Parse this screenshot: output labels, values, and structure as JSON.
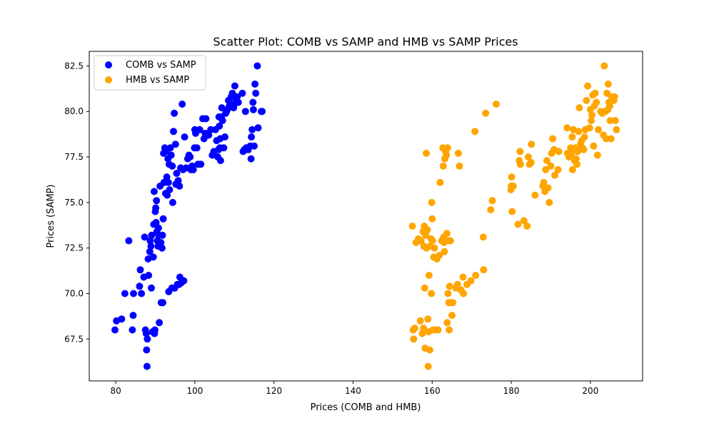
{
  "chart_data": {
    "type": "scatter",
    "title": "Scatter Plot: COMB vs SAMP and HMB vs SAMP Prices",
    "xlabel": "Prices (COMB and HMB)",
    "ylabel": "Prices (SAMP)",
    "xlim": [
      73.3,
      213.2
    ],
    "ylim": [
      65.2,
      83.3
    ],
    "xticks": [
      80,
      100,
      120,
      140,
      160,
      180,
      200
    ],
    "yticks": [
      67.5,
      70.0,
      72.5,
      75.0,
      77.5,
      80.0,
      82.5
    ],
    "xtick_labels": [
      "80",
      "100",
      "120",
      "140",
      "160",
      "180",
      "200"
    ],
    "ytick_labels": [
      "67.5",
      "70.0",
      "72.5",
      "75.0",
      "77.5",
      "80.0",
      "82.5"
    ],
    "grid": false,
    "legend_position": "top-left",
    "series": [
      {
        "name": "COMB vs SAMP",
        "color": "#0000ff",
        "points": [
          [
            79.8,
            68.0
          ],
          [
            80.2,
            68.5
          ],
          [
            81.5,
            68.6
          ],
          [
            82.3,
            70.0
          ],
          [
            83.3,
            72.9
          ],
          [
            84.2,
            68.0
          ],
          [
            84.4,
            68.8
          ],
          [
            84.5,
            70.0
          ],
          [
            86.0,
            70.4
          ],
          [
            86.2,
            71.3
          ],
          [
            86.5,
            70.0
          ],
          [
            87.1,
            70.9
          ],
          [
            87.3,
            73.1
          ],
          [
            87.5,
            68.0
          ],
          [
            87.7,
            67.8
          ],
          [
            87.8,
            66.9
          ],
          [
            87.9,
            66.0
          ],
          [
            88.0,
            67.5
          ],
          [
            88.2,
            71.9
          ],
          [
            88.3,
            71.0
          ],
          [
            88.6,
            72.3
          ],
          [
            88.7,
            72.9
          ],
          [
            88.9,
            72.6
          ],
          [
            89.0,
            70.3
          ],
          [
            89.1,
            73.2
          ],
          [
            89.3,
            67.9
          ],
          [
            89.5,
            72.0
          ],
          [
            89.6,
            73.8
          ],
          [
            89.7,
            75.6
          ],
          [
            89.8,
            67.8
          ],
          [
            89.9,
            68.0
          ],
          [
            90.0,
            74.5
          ],
          [
            90.1,
            74.7
          ],
          [
            90.2,
            73.9
          ],
          [
            90.3,
            75.1
          ],
          [
            90.4,
            73.4
          ],
          [
            90.5,
            72.9
          ],
          [
            90.7,
            72.6
          ],
          [
            90.8,
            73.6
          ],
          [
            90.9,
            73.2
          ],
          [
            91.0,
            68.4
          ],
          [
            91.2,
            75.9
          ],
          [
            91.4,
            72.8
          ],
          [
            91.5,
            69.5
          ],
          [
            91.7,
            72.5
          ],
          [
            91.8,
            73.2
          ],
          [
            91.9,
            69.5
          ],
          [
            92.0,
            74.1
          ],
          [
            92.1,
            77.7
          ],
          [
            92.2,
            76.1
          ],
          [
            92.4,
            78.0
          ],
          [
            92.6,
            75.5
          ],
          [
            92.7,
            75.5
          ],
          [
            92.8,
            77.8
          ],
          [
            92.9,
            76.4
          ],
          [
            93.0,
            75.4
          ],
          [
            93.2,
            77.4
          ],
          [
            93.3,
            76.1
          ],
          [
            93.4,
            70.1
          ],
          [
            93.5,
            77.1
          ],
          [
            93.6,
            75.7
          ],
          [
            93.8,
            78.0
          ],
          [
            94.0,
            77.6
          ],
          [
            94.2,
            70.3
          ],
          [
            94.3,
            77.0
          ],
          [
            94.4,
            75.0
          ],
          [
            94.6,
            78.9
          ],
          [
            94.8,
            79.9
          ],
          [
            94.9,
            70.3
          ],
          [
            95.1,
            78.2
          ],
          [
            95.2,
            76.0
          ],
          [
            95.4,
            76.6
          ],
          [
            95.6,
            70.5
          ],
          [
            95.8,
            76.2
          ],
          [
            96.0,
            70.5
          ],
          [
            96.1,
            75.9
          ],
          [
            96.2,
            70.9
          ],
          [
            96.4,
            76.9
          ],
          [
            96.6,
            70.6
          ],
          [
            96.8,
            80.4
          ],
          [
            97.0,
            76.8
          ],
          [
            97.2,
            70.7
          ],
          [
            97.4,
            78.6
          ],
          [
            97.8,
            76.9
          ],
          [
            98.2,
            77.4
          ],
          [
            98.5,
            77.6
          ],
          [
            98.8,
            77.5
          ],
          [
            99.0,
            76.8
          ],
          [
            99.3,
            77.0
          ],
          [
            99.6,
            76.8
          ],
          [
            99.9,
            78.0
          ],
          [
            100.0,
            79.0
          ],
          [
            100.2,
            78.8
          ],
          [
            100.5,
            78.0
          ],
          [
            100.8,
            77.1
          ],
          [
            101.2,
            79.0
          ],
          [
            101.5,
            77.1
          ],
          [
            102.0,
            79.6
          ],
          [
            102.3,
            78.5
          ],
          [
            102.6,
            78.8
          ],
          [
            102.8,
            79.6
          ],
          [
            103.5,
            78.7
          ],
          [
            104.0,
            79.0
          ],
          [
            104.4,
            77.6
          ],
          [
            104.8,
            77.8
          ],
          [
            105.2,
            79.0
          ],
          [
            105.5,
            78.4
          ],
          [
            105.8,
            77.5
          ],
          [
            106.0,
            77.9
          ],
          [
            106.1,
            79.7
          ],
          [
            106.2,
            79.2
          ],
          [
            106.3,
            78.0
          ],
          [
            106.4,
            78.5
          ],
          [
            106.5,
            77.3
          ],
          [
            106.7,
            79.7
          ],
          [
            106.8,
            80.2
          ],
          [
            107.0,
            79.5
          ],
          [
            107.3,
            78.0
          ],
          [
            107.6,
            78.6
          ],
          [
            107.8,
            79.9
          ],
          [
            108.0,
            80.0
          ],
          [
            108.2,
            80.1
          ],
          [
            108.5,
            80.6
          ],
          [
            108.7,
            80.3
          ],
          [
            109.0,
            80.4
          ],
          [
            109.2,
            80.8
          ],
          [
            109.5,
            81.0
          ],
          [
            109.8,
            80.2
          ],
          [
            110.0,
            80.4
          ],
          [
            110.1,
            81.4
          ],
          [
            110.4,
            80.6
          ],
          [
            110.7,
            80.8
          ],
          [
            111.0,
            80.5
          ],
          [
            112.0,
            81.0
          ],
          [
            112.2,
            77.8
          ],
          [
            112.5,
            77.9
          ],
          [
            112.8,
            80.0
          ],
          [
            113.0,
            78.0
          ],
          [
            113.5,
            77.9
          ],
          [
            114.0,
            78.1
          ],
          [
            114.2,
            77.4
          ],
          [
            114.3,
            78.6
          ],
          [
            114.5,
            79.0
          ],
          [
            114.7,
            80.5
          ],
          [
            114.8,
            80.1
          ],
          [
            115.0,
            78.1
          ],
          [
            115.2,
            81.5
          ],
          [
            115.4,
            81.0
          ],
          [
            115.8,
            82.5
          ],
          [
            116.0,
            79.1
          ],
          [
            116.8,
            80.0
          ],
          [
            117.0,
            80.0
          ]
        ]
      },
      {
        "name": "HMB vs SAMP",
        "color": "#ffa500",
        "points": [
          [
            155.0,
            73.7
          ],
          [
            155.2,
            68.0
          ],
          [
            155.3,
            67.5
          ],
          [
            155.6,
            68.1
          ],
          [
            155.9,
            72.8
          ],
          [
            156.5,
            73.0
          ],
          [
            157.0,
            68.5
          ],
          [
            157.2,
            72.9
          ],
          [
            157.5,
            67.8
          ],
          [
            157.7,
            73.4
          ],
          [
            157.8,
            68.1
          ],
          [
            157.9,
            72.6
          ],
          [
            158.0,
            73.7
          ],
          [
            158.1,
            70.3
          ],
          [
            158.2,
            67.0
          ],
          [
            158.4,
            73.2
          ],
          [
            158.5,
            77.7
          ],
          [
            158.6,
            72.5
          ],
          [
            158.8,
            73.5
          ],
          [
            158.9,
            68.6
          ],
          [
            159.0,
            66.0
          ],
          [
            159.1,
            67.9
          ],
          [
            159.2,
            71.0
          ],
          [
            159.4,
            66.9
          ],
          [
            159.5,
            72.6
          ],
          [
            159.7,
            73.0
          ],
          [
            159.8,
            70.0
          ],
          [
            159.9,
            75.0
          ],
          [
            160.0,
            74.1
          ],
          [
            160.1,
            72.9
          ],
          [
            160.2,
            68.0
          ],
          [
            160.4,
            72.0
          ],
          [
            160.6,
            72.5
          ],
          [
            160.8,
            68.0
          ],
          [
            161.2,
            71.9
          ],
          [
            161.5,
            68.0
          ],
          [
            161.8,
            72.1
          ],
          [
            162.0,
            76.1
          ],
          [
            162.4,
            72.9
          ],
          [
            162.7,
            78.0
          ],
          [
            162.8,
            77.0
          ],
          [
            162.9,
            73.1
          ],
          [
            163.0,
            72.8
          ],
          [
            163.1,
            72.3
          ],
          [
            163.2,
            77.4
          ],
          [
            163.4,
            77.8
          ],
          [
            163.6,
            77.6
          ],
          [
            163.7,
            73.3
          ],
          [
            163.8,
            68.4
          ],
          [
            163.9,
            78.0
          ],
          [
            164.0,
            70.0
          ],
          [
            164.1,
            72.9
          ],
          [
            164.2,
            69.5
          ],
          [
            164.3,
            68.0
          ],
          [
            164.4,
            70.4
          ],
          [
            164.6,
            72.9
          ],
          [
            164.8,
            69.5
          ],
          [
            165.0,
            68.8
          ],
          [
            165.2,
            69.5
          ],
          [
            166.0,
            70.3
          ],
          [
            166.4,
            70.5
          ],
          [
            166.6,
            77.7
          ],
          [
            166.9,
            77.0
          ],
          [
            167.3,
            70.2
          ],
          [
            167.8,
            70.9
          ],
          [
            167.9,
            70.0
          ],
          [
            168.8,
            70.5
          ],
          [
            169.8,
            70.7
          ],
          [
            170.8,
            78.9
          ],
          [
            171.0,
            71.0
          ],
          [
            172.9,
            73.1
          ],
          [
            173.0,
            71.3
          ],
          [
            173.5,
            79.9
          ],
          [
            174.8,
            74.6
          ],
          [
            175.2,
            75.1
          ],
          [
            176.2,
            80.4
          ],
          [
            179.9,
            75.7
          ],
          [
            180.0,
            75.9
          ],
          [
            180.1,
            76.4
          ],
          [
            180.2,
            74.5
          ],
          [
            180.5,
            75.9
          ],
          [
            181.7,
            73.8
          ],
          [
            182.0,
            77.3
          ],
          [
            182.2,
            77.8
          ],
          [
            182.3,
            77.1
          ],
          [
            183.2,
            74.0
          ],
          [
            184.0,
            73.7
          ],
          [
            184.3,
            77.5
          ],
          [
            184.6,
            77.1
          ],
          [
            185.0,
            77.2
          ],
          [
            185.1,
            78.2
          ],
          [
            186.0,
            75.4
          ],
          [
            188.0,
            75.9
          ],
          [
            188.2,
            76.1
          ],
          [
            188.5,
            75.6
          ],
          [
            188.7,
            76.8
          ],
          [
            189.0,
            77.3
          ],
          [
            189.3,
            75.8
          ],
          [
            189.6,
            75.0
          ],
          [
            190.0,
            77.0
          ],
          [
            190.2,
            77.7
          ],
          [
            190.5,
            78.5
          ],
          [
            190.8,
            77.9
          ],
          [
            191.0,
            76.5
          ],
          [
            191.8,
            76.8
          ],
          [
            192.0,
            77.8
          ],
          [
            194.1,
            79.1
          ],
          [
            194.2,
            77.7
          ],
          [
            194.6,
            77.5
          ],
          [
            195.0,
            78.0
          ],
          [
            195.2,
            77.6
          ],
          [
            195.4,
            78.6
          ],
          [
            195.5,
            76.8
          ],
          [
            195.7,
            79.0
          ],
          [
            195.8,
            77.9
          ],
          [
            196.0,
            77.3
          ],
          [
            196.2,
            78.0
          ],
          [
            196.4,
            77.4
          ],
          [
            196.6,
            77.1
          ],
          [
            196.8,
            77.8
          ],
          [
            197.0,
            78.9
          ],
          [
            197.2,
            80.2
          ],
          [
            197.5,
            78.2
          ],
          [
            197.8,
            78.4
          ],
          [
            198.0,
            78.0
          ],
          [
            198.3,
            77.9
          ],
          [
            198.5,
            78.6
          ],
          [
            198.7,
            79.0
          ],
          [
            199.0,
            80.6
          ],
          [
            199.3,
            81.4
          ],
          [
            199.8,
            79.1
          ],
          [
            200.0,
            80.1
          ],
          [
            200.2,
            79.5
          ],
          [
            200.4,
            79.8
          ],
          [
            200.6,
            80.9
          ],
          [
            200.8,
            78.1
          ],
          [
            201.0,
            80.3
          ],
          [
            201.2,
            81.0
          ],
          [
            201.5,
            80.5
          ],
          [
            201.8,
            77.6
          ],
          [
            202.0,
            79.0
          ],
          [
            202.6,
            80.0
          ],
          [
            203.0,
            79.9
          ],
          [
            203.3,
            78.7
          ],
          [
            203.5,
            82.5
          ],
          [
            203.8,
            80.0
          ],
          [
            204.0,
            78.5
          ],
          [
            204.2,
            81.0
          ],
          [
            204.4,
            80.1
          ],
          [
            204.5,
            81.5
          ],
          [
            204.7,
            80.5
          ],
          [
            204.9,
            80.3
          ],
          [
            205.0,
            79.5
          ],
          [
            205.2,
            78.5
          ],
          [
            205.4,
            80.8
          ],
          [
            205.6,
            80.7
          ],
          [
            205.9,
            80.6
          ],
          [
            206.1,
            80.8
          ],
          [
            206.3,
            79.5
          ],
          [
            206.6,
            79.0
          ]
        ]
      }
    ]
  }
}
